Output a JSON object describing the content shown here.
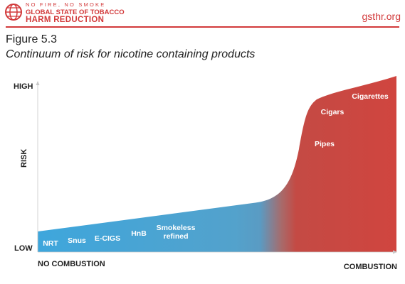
{
  "header": {
    "brand_line1": "NO FIRE, NO SMOKE",
    "brand_line2": "GLOBAL STATE OF TOBACCO",
    "brand_line3": "HARM REDUCTION",
    "site": "gsthr.org",
    "accent_color": "#d2393a",
    "logo_icon": "globe-logo-icon"
  },
  "figure": {
    "label": "Figure 5.3",
    "title": "Continuum of risk for nicotine containing products"
  },
  "chart_data": {
    "type": "area",
    "y_axis_label": "RISK",
    "y_high_label": "HIGH",
    "y_low_label": "LOW",
    "x_left_label": "NO COMBUSTION",
    "x_right_label": "COMBUSTION",
    "gradient_colors": {
      "low": "#3ea6dc",
      "high": "#d0453f"
    },
    "products": [
      {
        "name": "NRT"
      },
      {
        "name": "Snus"
      },
      {
        "name": "E-CIGS"
      },
      {
        "name": "HnB"
      },
      {
        "name": "Smokeless refined",
        "lines": [
          "Smokeless",
          "refined"
        ]
      },
      {
        "name": "Pipes"
      },
      {
        "name": "Cigars"
      },
      {
        "name": "Cigarettes"
      }
    ]
  }
}
